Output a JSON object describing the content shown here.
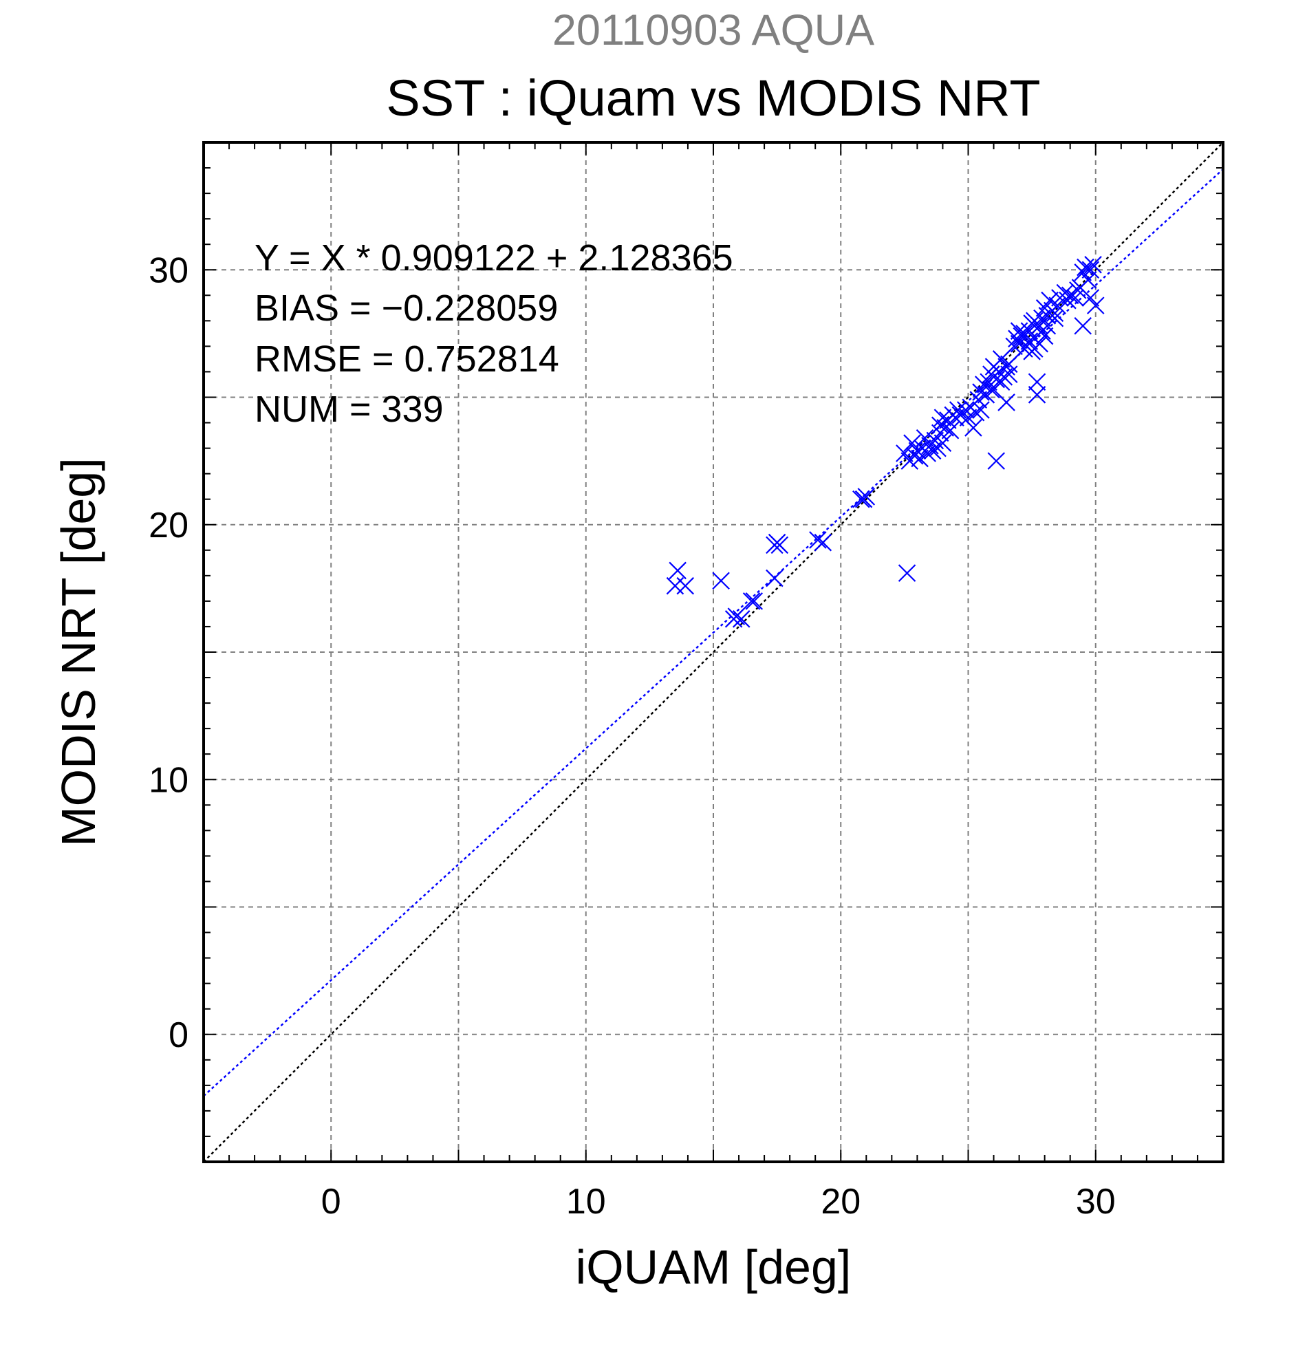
{
  "chart_data": {
    "type": "scatter",
    "subtitle": "20110903 AQUA",
    "title": "SST : iQuam vs MODIS NRT",
    "xlabel": "iQUAM [deg]",
    "ylabel": "MODIS NRT [deg]",
    "xlim": [
      -5,
      35
    ],
    "ylim": [
      -5,
      35
    ],
    "xticks": [
      0,
      10,
      20,
      30
    ],
    "yticks": [
      0,
      10,
      20,
      30
    ],
    "xtick_labels": [
      "0",
      "10",
      "20",
      "30"
    ],
    "ytick_labels": [
      "0",
      "10",
      "20",
      "30"
    ],
    "grid": true,
    "minor_tick_step": 1,
    "stats": {
      "equation": "Y = X * 0.909122 + 2.128365",
      "bias": "BIAS = −0.228059",
      "rmse": "RMSE = 0.752814",
      "num": "NUM = 339"
    },
    "lines": [
      {
        "kind": "identity",
        "slope": 1,
        "intercept": 0,
        "color": "#000000"
      },
      {
        "kind": "regression",
        "slope": 0.909122,
        "intercept": 2.128365,
        "color": "#0000ff"
      }
    ],
    "marker": "x",
    "marker_color": "#0000ff",
    "points": [
      [
        13.5,
        17.6
      ],
      [
        13.6,
        18.2
      ],
      [
        13.9,
        17.6
      ],
      [
        15.3,
        17.8
      ],
      [
        15.8,
        16.3
      ],
      [
        15.9,
        16.4
      ],
      [
        16.1,
        16.3
      ],
      [
        16.5,
        17.0
      ],
      [
        16.6,
        17.0
      ],
      [
        17.4,
        19.2
      ],
      [
        17.5,
        19.3
      ],
      [
        17.6,
        19.2
      ],
      [
        17.4,
        17.9
      ],
      [
        19.1,
        19.4
      ],
      [
        19.3,
        19.3
      ],
      [
        20.8,
        21.0
      ],
      [
        20.9,
        21.0
      ],
      [
        21.0,
        21.1
      ],
      [
        22.6,
        18.1
      ],
      [
        22.5,
        22.8
      ],
      [
        22.7,
        22.5
      ],
      [
        22.8,
        23.2
      ],
      [
        22.9,
        22.7
      ],
      [
        23.0,
        22.9
      ],
      [
        23.1,
        22.6
      ],
      [
        23.2,
        23.0
      ],
      [
        23.3,
        23.4
      ],
      [
        23.4,
        22.8
      ],
      [
        23.5,
        23.1
      ],
      [
        23.6,
        22.9
      ],
      [
        23.7,
        23.3
      ],
      [
        23.8,
        23.0
      ],
      [
        23.9,
        23.6
      ],
      [
        24.0,
        23.2
      ],
      [
        24.0,
        24.2
      ],
      [
        24.1,
        23.8
      ],
      [
        24.2,
        24.1
      ],
      [
        24.3,
        23.7
      ],
      [
        24.4,
        24.3
      ],
      [
        24.5,
        24.2
      ],
      [
        24.7,
        24.3
      ],
      [
        24.9,
        24.5
      ],
      [
        25.0,
        24.2
      ],
      [
        25.1,
        24.6
      ],
      [
        25.2,
        23.8
      ],
      [
        25.3,
        24.4
      ],
      [
        25.4,
        24.9
      ],
      [
        25.5,
        25.2
      ],
      [
        25.5,
        24.5
      ],
      [
        25.6,
        25.5
      ],
      [
        25.7,
        25.1
      ],
      [
        25.8,
        25.6
      ],
      [
        25.9,
        25.9
      ],
      [
        26.0,
        25.3
      ],
      [
        26.0,
        26.2
      ],
      [
        26.1,
        25.7
      ],
      [
        26.1,
        22.5
      ],
      [
        26.2,
        26.0
      ],
      [
        26.3,
        25.6
      ],
      [
        26.3,
        26.5
      ],
      [
        26.4,
        25.8
      ],
      [
        26.5,
        26.2
      ],
      [
        26.5,
        24.8
      ],
      [
        26.6,
        25.9
      ],
      [
        26.6,
        26.3
      ],
      [
        26.8,
        27.0
      ],
      [
        26.9,
        27.3
      ],
      [
        27.0,
        27.1
      ],
      [
        27.1,
        27.4
      ],
      [
        27.2,
        27.5
      ],
      [
        27.3,
        27.0
      ],
      [
        27.4,
        27.6
      ],
      [
        27.4,
        27.2
      ],
      [
        27.5,
        27.9
      ],
      [
        27.5,
        26.8
      ],
      [
        27.6,
        27.3
      ],
      [
        27.6,
        28.0
      ],
      [
        27.7,
        25.1
      ],
      [
        27.7,
        25.6
      ],
      [
        27.8,
        27.8
      ],
      [
        27.8,
        27.1
      ],
      [
        27.9,
        28.1
      ],
      [
        27.9,
        27.6
      ],
      [
        28.0,
        28.5
      ],
      [
        28.0,
        27.4
      ],
      [
        28.1,
        28.2
      ],
      [
        28.1,
        27.8
      ],
      [
        28.2,
        28.8
      ],
      [
        28.3,
        28.4
      ],
      [
        28.4,
        28.1
      ],
      [
        28.5,
        28.6
      ],
      [
        28.6,
        28.9
      ],
      [
        28.8,
        29.1
      ],
      [
        28.9,
        28.8
      ],
      [
        29.0,
        29.0
      ],
      [
        29.2,
        28.9
      ],
      [
        29.4,
        29.3
      ],
      [
        29.5,
        29.9
      ],
      [
        29.5,
        27.8
      ],
      [
        29.6,
        30.1
      ],
      [
        29.7,
        29.6
      ],
      [
        29.8,
        30.0
      ],
      [
        29.9,
        30.2
      ],
      [
        30.0,
        28.6
      ],
      [
        29.8,
        28.9
      ],
      [
        27.6,
        26.9
      ],
      [
        27.2,
        26.9
      ],
      [
        26.2,
        26.0
      ],
      [
        25.9,
        25.3
      ],
      [
        24.6,
        24.5
      ],
      [
        23.9,
        23.9
      ],
      [
        27.0,
        27.6
      ],
      [
        28.4,
        28.3
      ],
      [
        29.3,
        29.2
      ]
    ]
  }
}
